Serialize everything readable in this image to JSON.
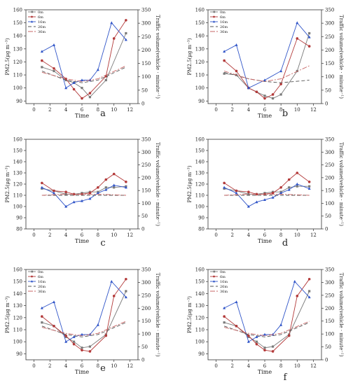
{
  "figure": {
    "layout": "3 rows x 2 columns of panels"
  },
  "chart_data": [
    {
      "panel": "a",
      "type": "line",
      "xlabel": "Time",
      "ylabel_left": "PM2.5(μg m⁻³)",
      "ylabel_right": "Traffic volume(vehicle · minute⁻¹)",
      "xlim": [
        -1,
        13
      ],
      "xticks": [
        0,
        2,
        4,
        6,
        8,
        10,
        12
      ],
      "ylim_left": [
        88,
        160
      ],
      "yticks_left": [
        90,
        100,
        110,
        120,
        130,
        140,
        150,
        160
      ],
      "ylim_right": [
        0,
        350
      ],
      "yticks_right": [
        0,
        50,
        100,
        150,
        200,
        250,
        300,
        350
      ],
      "legend": "top-left",
      "series": [
        {
          "name": "0m",
          "color": "#7a7a7a",
          "marker": "square",
          "x": [
            1,
            2.5,
            4,
            5,
            6,
            7,
            9,
            11.5
          ],
          "y": [
            116,
            113,
            106,
            104,
            100,
            93,
            106,
            142
          ]
        },
        {
          "name": "6m",
          "color": "#b33a3a",
          "marker": "circle",
          "x": [
            1,
            2.5,
            4,
            5,
            6,
            7,
            9,
            10,
            11.5
          ],
          "y": [
            121,
            115,
            107,
            99,
            92,
            96,
            109,
            138,
            152
          ]
        },
        {
          "name": "16m",
          "color": "#2f54c8",
          "marker": "triangle",
          "x": [
            1,
            2.5,
            4,
            5,
            6,
            7,
            8,
            9.7,
            11.5
          ],
          "y": [
            128,
            133,
            100,
            104,
            106,
            106,
            114,
            150,
            137
          ]
        },
        {
          "name": "26m",
          "color": "#555555",
          "marker": "none",
          "dash": "dash",
          "x": [
            1,
            4,
            6,
            8,
            11.5
          ],
          "y": [
            113,
            106,
            104,
            106,
            116
          ]
        },
        {
          "name": "36m",
          "color": "#c76464",
          "marker": "none",
          "dash": "dashdot",
          "x": [
            1,
            4,
            6,
            8,
            11.5
          ],
          "y": [
            112,
            107,
            105,
            107,
            117
          ]
        }
      ]
    },
    {
      "panel": "b",
      "type": "line",
      "xlabel": "Time",
      "ylabel_left": "PM2.5(μg m⁻³)",
      "ylabel_right": "Traffic volume(vehicle · minute⁻¹)",
      "xlim": [
        -1,
        13
      ],
      "xticks": [
        0,
        2,
        4,
        6,
        8,
        10,
        12
      ],
      "ylim_left": [
        88,
        160
      ],
      "yticks_left": [
        90,
        100,
        110,
        120,
        130,
        140,
        150,
        160
      ],
      "ylim_right": [
        0,
        350
      ],
      "yticks_right": [
        0,
        50,
        100,
        150,
        200,
        250,
        300,
        350
      ],
      "legend": "top-left",
      "series": [
        {
          "name": "0m",
          "color": "#7a7a7a",
          "marker": "square",
          "x": [
            1,
            2.5,
            4,
            5,
            6,
            7,
            8,
            10,
            11.5
          ],
          "y": [
            111,
            110,
            100,
            97,
            94,
            92,
            95,
            113,
            142
          ]
        },
        {
          "name": "6m",
          "color": "#b33a3a",
          "marker": "circle",
          "x": [
            1,
            2.5,
            4,
            5,
            6,
            7,
            8,
            10,
            11.5
          ],
          "y": [
            121,
            113,
            100,
            97,
            92,
            95,
            103,
            138,
            132
          ]
        },
        {
          "name": "16m",
          "color": "#2f54c8",
          "marker": "triangle",
          "x": [
            1,
            2.5,
            4,
            6,
            8,
            10,
            11.5
          ],
          "y": [
            128,
            133,
            100,
            106,
            113,
            150,
            139
          ]
        },
        {
          "name": "26m",
          "color": "#555555",
          "marker": "none",
          "dash": "dash",
          "x": [
            1,
            4,
            6,
            8,
            11.5
          ],
          "y": [
            112,
            107,
            105,
            104,
            106
          ]
        },
        {
          "name": "36m",
          "color": "#c76464",
          "marker": "none",
          "dash": "dashdot",
          "x": [
            1,
            4,
            6,
            8,
            11.5
          ],
          "y": [
            113,
            107,
            105,
            107,
            117
          ]
        }
      ]
    },
    {
      "panel": "c",
      "type": "line",
      "xlabel": "Time",
      "ylabel_left": "PM2.5(μg m⁻³)",
      "ylabel_right": "Traffic volume(vehicle · minute⁻¹)",
      "xlim": [
        -1,
        13
      ],
      "xticks": [
        0,
        2,
        4,
        6,
        8,
        10,
        12
      ],
      "ylim_left": [
        80,
        160
      ],
      "yticks_left": [
        80,
        90,
        100,
        110,
        120,
        130,
        140,
        150,
        160
      ],
      "ylim_right": [
        0,
        350
      ],
      "yticks_right": [
        0,
        50,
        100,
        150,
        200,
        250,
        300,
        350
      ],
      "legend": "none",
      "series": [
        {
          "name": "0m",
          "color": "#7a7a7a",
          "marker": "square",
          "x": [
            1,
            2.5,
            4,
            5,
            6,
            7,
            8,
            9,
            10,
            11.5
          ],
          "y": [
            116,
            114,
            111,
            111,
            112,
            113,
            113,
            117,
            117,
            118
          ]
        },
        {
          "name": "6m",
          "color": "#b33a3a",
          "marker": "circle",
          "x": [
            1,
            2.5,
            4,
            5,
            6,
            7,
            8,
            9,
            10,
            11.5
          ],
          "y": [
            121,
            114,
            113,
            111,
            111,
            112,
            117,
            124,
            129,
            122
          ]
        },
        {
          "name": "16m",
          "color": "#2f54c8",
          "marker": "triangle",
          "x": [
            1,
            2.5,
            4,
            5,
            6,
            7,
            8,
            9,
            10,
            11.5
          ],
          "y": [
            117,
            112,
            100,
            104,
            105,
            107,
            112,
            115,
            119,
            117
          ]
        },
        {
          "name": "26m",
          "color": "#555555",
          "marker": "none",
          "dash": "dash",
          "x": [
            1,
            4,
            8,
            11.5
          ],
          "y": [
            110,
            110,
            110,
            110
          ]
        },
        {
          "name": "36m",
          "color": "#c76464",
          "marker": "none",
          "dash": "dashdot",
          "x": [
            1,
            4,
            8,
            11.5
          ],
          "y": [
            110,
            111,
            111,
            110
          ]
        }
      ]
    },
    {
      "panel": "d",
      "type": "line",
      "xlabel": "Time",
      "ylabel_left": "PM2.5(μg m⁻³)",
      "ylabel_right": "Traffic volume(vehicle · minute⁻¹)",
      "xlim": [
        -1,
        13
      ],
      "xticks": [
        0,
        2,
        4,
        6,
        8,
        10,
        12
      ],
      "ylim_left": [
        80,
        160
      ],
      "yticks_left": [
        80,
        90,
        100,
        110,
        120,
        130,
        140,
        150,
        160
      ],
      "ylim_right": [
        0,
        350
      ],
      "yticks_right": [
        0,
        50,
        100,
        150,
        200,
        250,
        300,
        350
      ],
      "legend": "none",
      "series": [
        {
          "name": "0m",
          "color": "#7a7a7a",
          "marker": "square",
          "x": [
            1,
            2.5,
            4,
            5,
            6,
            7,
            8,
            9,
            10,
            11.5
          ],
          "y": [
            116,
            114,
            111,
            111,
            112,
            113,
            113,
            117,
            118,
            118
          ]
        },
        {
          "name": "6m",
          "color": "#b33a3a",
          "marker": "circle",
          "x": [
            1,
            2.5,
            4,
            5,
            6,
            7,
            8,
            9,
            10,
            11.5
          ],
          "y": [
            121,
            114,
            113,
            111,
            111,
            112,
            117,
            124,
            130,
            122
          ]
        },
        {
          "name": "16m",
          "color": "#2f54c8",
          "marker": "triangle",
          "x": [
            1,
            2.5,
            4,
            5,
            6,
            7,
            8,
            9,
            10,
            11.5
          ],
          "y": [
            117,
            112,
            100,
            104,
            106,
            108,
            112,
            115,
            120,
            116
          ]
        },
        {
          "name": "26m",
          "color": "#555555",
          "marker": "none",
          "dash": "dash",
          "x": [
            1,
            4,
            8,
            11.5
          ],
          "y": [
            110,
            110,
            110,
            110
          ]
        },
        {
          "name": "36m",
          "color": "#c76464",
          "marker": "none",
          "dash": "dashdot",
          "x": [
            1,
            4,
            8,
            11.5
          ],
          "y": [
            110,
            111,
            111,
            110
          ]
        }
      ]
    },
    {
      "panel": "e",
      "type": "line",
      "xlabel": "Time",
      "ylabel_left": "PM2.5(μg m⁻³)",
      "ylabel_right": "Traffic volume(vehicle · minute⁻¹)",
      "xlim": [
        -1,
        13
      ],
      "xticks": [
        0,
        2,
        4,
        6,
        8,
        10,
        12
      ],
      "ylim_left": [
        85,
        160
      ],
      "yticks_left": [
        90,
        100,
        110,
        120,
        130,
        140,
        150,
        160
      ],
      "ylim_right": [
        0,
        350
      ],
      "yticks_right": [
        0,
        50,
        100,
        150,
        200,
        250,
        300,
        350
      ],
      "legend": "top-left",
      "series": [
        {
          "name": "0m",
          "color": "#7a7a7a",
          "marker": "square",
          "x": [
            1,
            2.5,
            4,
            5,
            6,
            7,
            9,
            11.5
          ],
          "y": [
            116,
            113,
            104,
            100,
            95,
            96,
            106,
            142
          ]
        },
        {
          "name": "6m",
          "color": "#b33a3a",
          "marker": "circle",
          "x": [
            1,
            2.5,
            4,
            5,
            6,
            7,
            9,
            10,
            11.5
          ],
          "y": [
            121,
            113,
            105,
            98,
            93,
            92,
            105,
            138,
            152
          ]
        },
        {
          "name": "16m",
          "color": "#2f54c8",
          "marker": "triangle",
          "x": [
            1,
            2.5,
            4,
            5,
            6,
            7,
            8,
            9.7,
            11.5
          ],
          "y": [
            128,
            133,
            100,
            104,
            106,
            106,
            114,
            150,
            137
          ]
        },
        {
          "name": "26m",
          "color": "#555555",
          "marker": "none",
          "dash": "dash",
          "x": [
            1,
            4,
            6,
            8,
            11.5
          ],
          "y": [
            113,
            106,
            104,
            106,
            116
          ]
        },
        {
          "name": "36m",
          "color": "#c76464",
          "marker": "none",
          "dash": "dashdot",
          "x": [
            1,
            4,
            6,
            8,
            11.5
          ],
          "y": [
            112,
            107,
            105,
            107,
            117
          ]
        }
      ]
    },
    {
      "panel": "f",
      "type": "line",
      "xlabel": "Time",
      "ylabel_left": "PM2.5(μg m⁻³)",
      "ylabel_right": "Traffic volume(vehicle · minute⁻¹)",
      "xlim": [
        -1,
        13
      ],
      "xticks": [
        0,
        2,
        4,
        6,
        8,
        10,
        12
      ],
      "ylim_left": [
        85,
        160
      ],
      "yticks_left": [
        90,
        100,
        110,
        120,
        130,
        140,
        150,
        160
      ],
      "ylim_right": [
        0,
        350
      ],
      "yticks_right": [
        0,
        50,
        100,
        150,
        200,
        250,
        300,
        350
      ],
      "legend": "top-left",
      "series": [
        {
          "name": "0m",
          "color": "#7a7a7a",
          "marker": "square",
          "x": [
            1,
            2.5,
            4,
            5,
            6,
            7,
            9,
            11.5
          ],
          "y": [
            116,
            113,
            104,
            100,
            95,
            96,
            106,
            142
          ]
        },
        {
          "name": "6m",
          "color": "#b33a3a",
          "marker": "circle",
          "x": [
            1,
            2.5,
            4,
            5,
            6,
            7,
            9,
            10,
            11.5
          ],
          "y": [
            121,
            113,
            105,
            98,
            93,
            92,
            105,
            138,
            152
          ]
        },
        {
          "name": "16m",
          "color": "#2f54c8",
          "marker": "triangle",
          "x": [
            1,
            2.5,
            4,
            5,
            6,
            7,
            8,
            9.7,
            11.5
          ],
          "y": [
            128,
            133,
            100,
            104,
            106,
            106,
            114,
            150,
            137
          ]
        },
        {
          "name": "26m",
          "color": "#555555",
          "marker": "none",
          "dash": "dash",
          "x": [
            1,
            4,
            6,
            8,
            11.5
          ],
          "y": [
            113,
            106,
            104,
            106,
            116
          ]
        },
        {
          "name": "36m",
          "color": "#c76464",
          "marker": "none",
          "dash": "dashdot",
          "x": [
            1,
            4,
            6,
            8,
            11.5
          ],
          "y": [
            112,
            107,
            105,
            107,
            117
          ]
        }
      ]
    }
  ]
}
